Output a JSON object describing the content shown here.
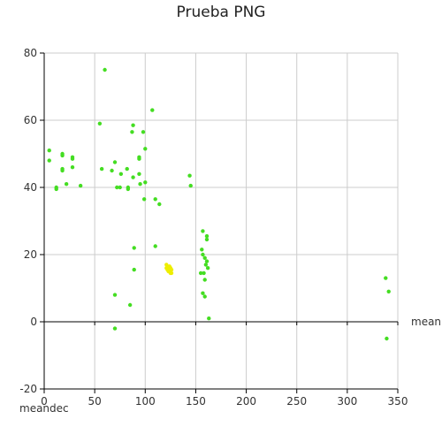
{
  "chart_data": {
    "type": "scatter",
    "title": "Prueba PNG",
    "xlabel": "meanra",
    "ylabel": "meandec",
    "xlim": [
      0,
      350
    ],
    "ylim": [
      -20,
      80
    ],
    "xticks": [
      0,
      50,
      100,
      150,
      200,
      250,
      300,
      350
    ],
    "yticks": [
      -20,
      0,
      20,
      40,
      60,
      80
    ],
    "grid": true,
    "colors": {
      "primary": "#44dd22",
      "highlight": "#eeee00",
      "axis": "#000000",
      "grid": "#cccccc"
    },
    "series": [
      {
        "color": "#44dd22",
        "points": [
          [
            5,
            51
          ],
          [
            5,
            48
          ],
          [
            12,
            40
          ],
          [
            12,
            39.5
          ],
          [
            18,
            50
          ],
          [
            18,
            49.5
          ],
          [
            18,
            45.5
          ],
          [
            18,
            45
          ],
          [
            22,
            41
          ],
          [
            28,
            49
          ],
          [
            28,
            48.5
          ],
          [
            28,
            46
          ],
          [
            36,
            40.5
          ],
          [
            55,
            59
          ],
          [
            57,
            45.5
          ],
          [
            60,
            75
          ],
          [
            67,
            45
          ],
          [
            70,
            47.5
          ],
          [
            72,
            40
          ],
          [
            75,
            40
          ],
          [
            76,
            44
          ],
          [
            82,
            45.5
          ],
          [
            83,
            40
          ],
          [
            83,
            39.5
          ],
          [
            88,
            58.5
          ],
          [
            87,
            56.5
          ],
          [
            88,
            43
          ],
          [
            94,
            49
          ],
          [
            94,
            48.5
          ],
          [
            94,
            44
          ],
          [
            95,
            41
          ],
          [
            98,
            56.5
          ],
          [
            99,
            36.5
          ],
          [
            100,
            41.5
          ],
          [
            100,
            51.5
          ],
          [
            107,
            63
          ],
          [
            110,
            36.5
          ],
          [
            110,
            22.5
          ],
          [
            114,
            35
          ],
          [
            144,
            43.5
          ],
          [
            145,
            40.5
          ],
          [
            89,
            22
          ],
          [
            89,
            15.5
          ],
          [
            70,
            8
          ],
          [
            85,
            5
          ],
          [
            70,
            -2
          ],
          [
            155,
            14.5
          ],
          [
            156,
            21.5
          ],
          [
            157,
            27
          ],
          [
            157,
            20
          ],
          [
            157,
            8.5
          ],
          [
            158,
            14.5
          ],
          [
            159,
            7.5
          ],
          [
            159,
            19
          ],
          [
            159,
            12.5
          ],
          [
            160,
            17
          ],
          [
            161,
            25.5
          ],
          [
            161,
            18
          ],
          [
            161,
            24.5
          ],
          [
            162,
            16
          ],
          [
            163,
            1
          ],
          [
            338,
            13
          ],
          [
            341,
            9
          ],
          [
            339,
            -5
          ]
        ]
      },
      {
        "color": "#eeee00",
        "points": [
          [
            121,
            17
          ],
          [
            121,
            16
          ],
          [
            122,
            16.5
          ],
          [
            122,
            15.5
          ],
          [
            123,
            16
          ],
          [
            123,
            15
          ],
          [
            124,
            16.5
          ],
          [
            124,
            15
          ],
          [
            125,
            14.5
          ],
          [
            125,
            16
          ],
          [
            126,
            15.5
          ],
          [
            126,
            14.5
          ]
        ]
      }
    ]
  }
}
